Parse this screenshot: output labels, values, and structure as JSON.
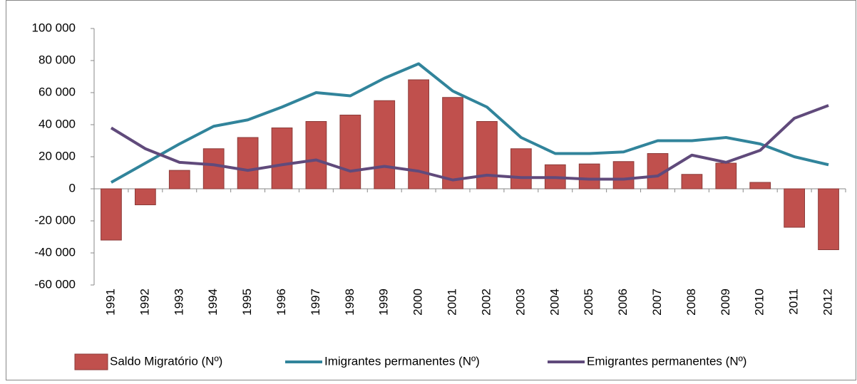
{
  "chart_data": {
    "type": "bar",
    "categories": [
      "1991",
      "1992",
      "1993",
      "1994",
      "1995",
      "1996",
      "1997",
      "1998",
      "1999",
      "2000",
      "2001",
      "2002",
      "2003",
      "2004",
      "2005",
      "2006",
      "2007",
      "2008",
      "2009",
      "2010",
      "2011",
      "2012"
    ],
    "series": [
      {
        "name": "Saldo Migratório (Nº)",
        "type": "bar",
        "color": "#c0504d",
        "values": [
          -32000,
          -10000,
          11500,
          25000,
          32000,
          38000,
          42000,
          46000,
          55000,
          68000,
          57000,
          42000,
          25000,
          15000,
          15500,
          17000,
          22000,
          9000,
          16000,
          4000,
          -24000,
          -38000
        ]
      },
      {
        "name": "Imigrantes permanentes (Nº)",
        "type": "line",
        "color": "#31849b",
        "values": [
          4000,
          16000,
          28000,
          39000,
          43000,
          51000,
          60000,
          58000,
          69000,
          78000,
          61000,
          51000,
          32000,
          22000,
          22000,
          23000,
          30000,
          30000,
          32000,
          28000,
          20000,
          15000
        ]
      },
      {
        "name": "Emigrantes permanentes (Nº)",
        "type": "line",
        "color": "#604a7b",
        "values": [
          38000,
          25000,
          16500,
          15000,
          11500,
          15000,
          18000,
          11000,
          14000,
          11000,
          5500,
          8500,
          7000,
          7000,
          6000,
          6000,
          8000,
          21000,
          16500,
          24000,
          44000,
          52000
        ]
      }
    ],
    "ylim": [
      -60000,
      100000
    ],
    "yticks": [
      {
        "value": -60000,
        "label": "-60 000"
      },
      {
        "value": -40000,
        "label": "-40 000"
      },
      {
        "value": -20000,
        "label": "-20 000"
      },
      0,
      {
        "value": 20000,
        "label": "20 000"
      },
      {
        "value": 40000,
        "label": "40 000"
      },
      {
        "value": 60000,
        "label": "60 000"
      },
      {
        "value": 80000,
        "label": "80 000"
      },
      {
        "value": 100000,
        "label": "100 000"
      }
    ],
    "grid": false,
    "legend": "bottom"
  }
}
